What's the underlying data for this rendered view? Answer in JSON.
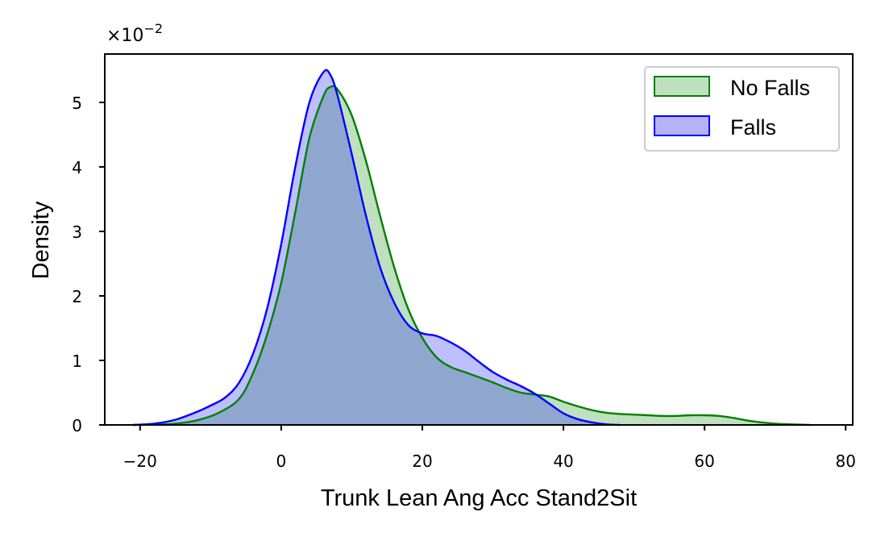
{
  "chart_data": {
    "type": "area",
    "xlabel": "Trunk Lean Ang Acc Stand2Sit",
    "ylabel": "Density",
    "y_scale_offset": "×10",
    "y_scale_exponent": "−2",
    "xlim": [
      -25,
      81
    ],
    "ylim": [
      0,
      5.75
    ],
    "x_ticks": [
      -20,
      0,
      20,
      40,
      60,
      80
    ],
    "x_tick_labels": [
      "−20",
      "0",
      "20",
      "40",
      "60",
      "80"
    ],
    "y_ticks": [
      0,
      1,
      2,
      3,
      4,
      5
    ],
    "y_tick_labels": [
      "0",
      "1",
      "2",
      "3",
      "4",
      "5"
    ],
    "grid": false,
    "legend_position": "top-right",
    "series": [
      {
        "name": "No Falls",
        "color": "#008000",
        "fill": "#bfe0bf",
        "points": [
          [
            -21,
            0
          ],
          [
            -18,
            0.005
          ],
          [
            -15,
            0.02
          ],
          [
            -12,
            0.07
          ],
          [
            -9,
            0.18
          ],
          [
            -6,
            0.4
          ],
          [
            -4,
            0.8
          ],
          [
            -2,
            1.4
          ],
          [
            0,
            2.2
          ],
          [
            2,
            3.3
          ],
          [
            4,
            4.45
          ],
          [
            6,
            5.1
          ],
          [
            7,
            5.24
          ],
          [
            8,
            5.2
          ],
          [
            10,
            4.8
          ],
          [
            12,
            4.1
          ],
          [
            14,
            3.25
          ],
          [
            16,
            2.45
          ],
          [
            18,
            1.8
          ],
          [
            20,
            1.35
          ],
          [
            22,
            1.05
          ],
          [
            24,
            0.9
          ],
          [
            26,
            0.82
          ],
          [
            28,
            0.74
          ],
          [
            30,
            0.66
          ],
          [
            32,
            0.57
          ],
          [
            34,
            0.5
          ],
          [
            36,
            0.47
          ],
          [
            38,
            0.44
          ],
          [
            40,
            0.36
          ],
          [
            42,
            0.29
          ],
          [
            44,
            0.23
          ],
          [
            46,
            0.19
          ],
          [
            48,
            0.17
          ],
          [
            50,
            0.16
          ],
          [
            52,
            0.15
          ],
          [
            54,
            0.14
          ],
          [
            56,
            0.14
          ],
          [
            58,
            0.15
          ],
          [
            60,
            0.15
          ],
          [
            62,
            0.14
          ],
          [
            64,
            0.11
          ],
          [
            66,
            0.07
          ],
          [
            68,
            0.04
          ],
          [
            70,
            0.02
          ],
          [
            72,
            0.01
          ],
          [
            75,
            0
          ]
        ]
      },
      {
        "name": "Falls",
        "color": "#0000ff",
        "fill": "#b3b3f5",
        "points": [
          [
            -21,
            0
          ],
          [
            -18,
            0.02
          ],
          [
            -15,
            0.08
          ],
          [
            -12,
            0.2
          ],
          [
            -10,
            0.3
          ],
          [
            -8,
            0.42
          ],
          [
            -6,
            0.65
          ],
          [
            -4,
            1.1
          ],
          [
            -2,
            1.8
          ],
          [
            0,
            2.8
          ],
          [
            2,
            4.0
          ],
          [
            4,
            5.0
          ],
          [
            6,
            5.47
          ],
          [
            7,
            5.42
          ],
          [
            8,
            5.1
          ],
          [
            10,
            4.2
          ],
          [
            12,
            3.25
          ],
          [
            14,
            2.45
          ],
          [
            16,
            1.9
          ],
          [
            18,
            1.55
          ],
          [
            20,
            1.42
          ],
          [
            22,
            1.38
          ],
          [
            24,
            1.28
          ],
          [
            26,
            1.15
          ],
          [
            28,
            0.98
          ],
          [
            30,
            0.82
          ],
          [
            32,
            0.7
          ],
          [
            34,
            0.6
          ],
          [
            36,
            0.48
          ],
          [
            38,
            0.33
          ],
          [
            40,
            0.18
          ],
          [
            42,
            0.09
          ],
          [
            44,
            0.04
          ],
          [
            46,
            0.01
          ],
          [
            48,
            0
          ]
        ]
      }
    ]
  }
}
